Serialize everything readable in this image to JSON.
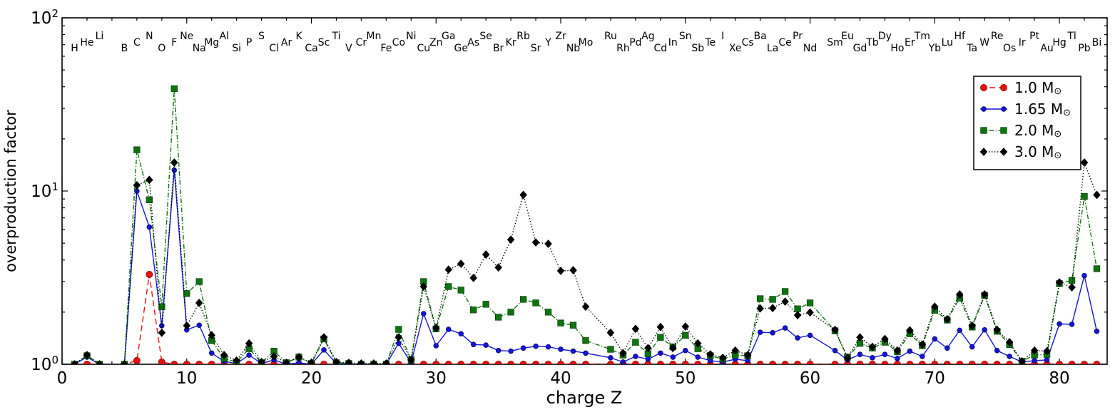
{
  "chart_data": {
    "type": "line",
    "title": "",
    "xlabel": "charge Z",
    "ylabel": "overproduction factor",
    "y_scale": "log",
    "ylim": [
      1,
      100
    ],
    "xlim": [
      0,
      83.83
    ],
    "grid": false,
    "legend_position": "upper right",
    "x_ticks": [
      0,
      10,
      20,
      30,
      40,
      50,
      60,
      70,
      80
    ],
    "y_ticks": [
      {
        "value": 1,
        "base": "10",
        "exp": "0"
      },
      {
        "value": 10,
        "base": "10",
        "exp": "1"
      },
      {
        "value": 100,
        "base": "10",
        "exp": "2"
      }
    ],
    "element_symbols": [
      "H",
      "He",
      "Li",
      "B",
      "C",
      "N",
      "O",
      "F",
      "Ne",
      "Na",
      "Mg",
      "Al",
      "Si",
      "P",
      "S",
      "Cl",
      "Ar",
      "K",
      "Ca",
      "Sc",
      "Ti",
      "V",
      "Cr",
      "Mn",
      "Fe",
      "Co",
      "Ni",
      "Cu",
      "Zn",
      "Ga",
      "Ge",
      "As",
      "Se",
      "Br",
      "Kr",
      "Rb",
      "Sr",
      "Y",
      "Zr",
      "Nb",
      "Mo",
      "Ru",
      "Rh",
      "Pd",
      "Ag",
      "Cd",
      "In",
      "Sn",
      "Sb",
      "Te",
      "I",
      "Xe",
      "Cs",
      "Ba",
      "La",
      "Ce",
      "Pr",
      "Nd",
      "Sm",
      "Eu",
      "Gd",
      "Tb",
      "Dy",
      "Ho",
      "Er",
      "Tm",
      "Yb",
      "Lu",
      "Hf",
      "Ta",
      "W",
      "Re",
      "Os",
      "Ir",
      "Pt",
      "Au",
      "Hg",
      "Tl",
      "Pb",
      "Bi"
    ],
    "element_z": [
      1,
      2,
      3,
      5,
      6,
      7,
      8,
      9,
      10,
      11,
      12,
      13,
      14,
      15,
      16,
      17,
      18,
      19,
      20,
      21,
      22,
      23,
      24,
      25,
      26,
      27,
      28,
      29,
      30,
      31,
      32,
      33,
      34,
      35,
      36,
      37,
      38,
      39,
      40,
      41,
      42,
      44,
      45,
      46,
      47,
      48,
      49,
      50,
      51,
      52,
      53,
      54,
      55,
      56,
      57,
      58,
      59,
      60,
      62,
      63,
      64,
      65,
      66,
      67,
      68,
      69,
      70,
      71,
      72,
      73,
      74,
      75,
      76,
      77,
      78,
      79,
      80,
      81,
      82,
      83
    ],
    "series": [
      {
        "name": "1.0 Msun",
        "color": "#e31212",
        "edge": "#8a0000",
        "line_style": "dashed",
        "marker": "circle-large",
        "values": [
          1,
          1,
          1,
          1,
          1.05,
          3.3,
          1.03,
          1,
          1,
          1,
          1,
          1,
          1,
          1,
          1,
          1,
          1,
          1,
          1,
          1,
          1,
          1,
          1,
          1,
          1,
          1,
          1,
          1,
          1,
          1,
          1,
          1,
          1,
          1,
          1,
          1,
          1,
          1,
          1,
          1,
          1,
          1,
          1,
          1,
          1,
          1,
          1,
          1,
          1,
          1,
          1,
          1,
          1,
          1,
          1,
          1,
          1,
          1,
          1,
          1,
          1,
          1,
          1,
          1,
          1,
          1,
          1,
          1,
          1,
          1,
          1,
          1,
          1,
          1,
          1,
          1,
          1,
          1,
          1,
          1
        ]
      },
      {
        "name": "1.65 Msun",
        "color": "#1414d6",
        "edge": "#000060",
        "line_style": "solid",
        "marker": "circle-small",
        "values": [
          1,
          1.1,
          1,
          1,
          10.0,
          6.2,
          1.67,
          13.2,
          1.58,
          1.68,
          1.16,
          1.04,
          1.01,
          1.13,
          1.01,
          1.06,
          1,
          1.02,
          1,
          1.21,
          1.01,
          1,
          1,
          1,
          1,
          1.32,
          1.02,
          1.96,
          1.28,
          1.59,
          1.5,
          1.3,
          1.29,
          1.2,
          1.19,
          1.24,
          1.27,
          1.26,
          1.22,
          1.19,
          1.16,
          1.09,
          1.03,
          1.11,
          1.07,
          1.16,
          1.1,
          1.2,
          1.1,
          1.05,
          1.03,
          1.07,
          1.05,
          1.53,
          1.52,
          1.62,
          1.42,
          1.47,
          1.2,
          1.06,
          1.14,
          1.09,
          1.14,
          1.08,
          1.19,
          1.11,
          1.4,
          1.24,
          1.57,
          1.26,
          1.58,
          1.2,
          1.11,
          1.03,
          1.05,
          1.06,
          1.71,
          1.7,
          3.25,
          1.55
        ]
      },
      {
        "name": "2.0 Msun",
        "color": "#0e750e",
        "edge": "#043a04",
        "line_style": "dashdot",
        "marker": "square",
        "values": [
          1,
          1.12,
          1,
          1,
          17.3,
          8.9,
          2.15,
          39.0,
          2.56,
          3.0,
          1.37,
          1.08,
          1.03,
          1.23,
          1.02,
          1.19,
          1.02,
          1.1,
          1.01,
          1.4,
          1.02,
          1.01,
          1,
          1,
          1,
          1.59,
          1.06,
          3.0,
          1.6,
          2.81,
          2.68,
          2.06,
          2.22,
          1.87,
          2.0,
          2.37,
          2.26,
          2.0,
          1.73,
          1.68,
          1.37,
          1.22,
          1.13,
          1.34,
          1.15,
          1.43,
          1.26,
          1.47,
          1.23,
          1.12,
          1.07,
          1.13,
          1.12,
          2.39,
          2.37,
          2.63,
          2.09,
          2.26,
          1.56,
          1.1,
          1.32,
          1.24,
          1.34,
          1.18,
          1.5,
          1.28,
          2.05,
          1.8,
          2.41,
          1.64,
          2.5,
          1.55,
          1.3,
          1.04,
          1.13,
          1.14,
          2.92,
          3.05,
          9.3,
          3.56
        ]
      },
      {
        "name": "3.0 Msun",
        "color": "#000000",
        "edge": "#000000",
        "line_style": "dotted",
        "marker": "diamond",
        "values": [
          1,
          1.13,
          1,
          1,
          10.8,
          11.6,
          1.52,
          14.6,
          1.67,
          2.26,
          1.47,
          1.13,
          1.05,
          1.32,
          1.03,
          1.11,
          1.02,
          1.1,
          1.02,
          1.43,
          1.03,
          1.02,
          1.01,
          1.01,
          1.01,
          1.43,
          1.06,
          2.81,
          1.62,
          3.52,
          3.8,
          3.15,
          4.3,
          3.62,
          5.24,
          9.5,
          5.05,
          4.96,
          3.46,
          3.49,
          2.15,
          1.52,
          1.16,
          1.6,
          1.24,
          1.64,
          1.24,
          1.65,
          1.32,
          1.14,
          1.09,
          1.2,
          1.13,
          2.1,
          2.11,
          2.3,
          1.92,
          1.99,
          1.58,
          1.09,
          1.43,
          1.26,
          1.4,
          1.2,
          1.57,
          1.3,
          2.15,
          1.82,
          2.53,
          1.67,
          2.53,
          1.58,
          1.34,
          1.04,
          1.2,
          1.19,
          2.97,
          2.78,
          14.6,
          9.5
        ]
      }
    ]
  },
  "legend": {
    "entries": [
      {
        "label": "1.0 M",
        "sun": "⊙"
      },
      {
        "label": "1.65 M",
        "sun": "⊙"
      },
      {
        "label": "2.0 M",
        "sun": "⊙"
      },
      {
        "label": "3.0 M",
        "sun": "⊙"
      }
    ]
  }
}
